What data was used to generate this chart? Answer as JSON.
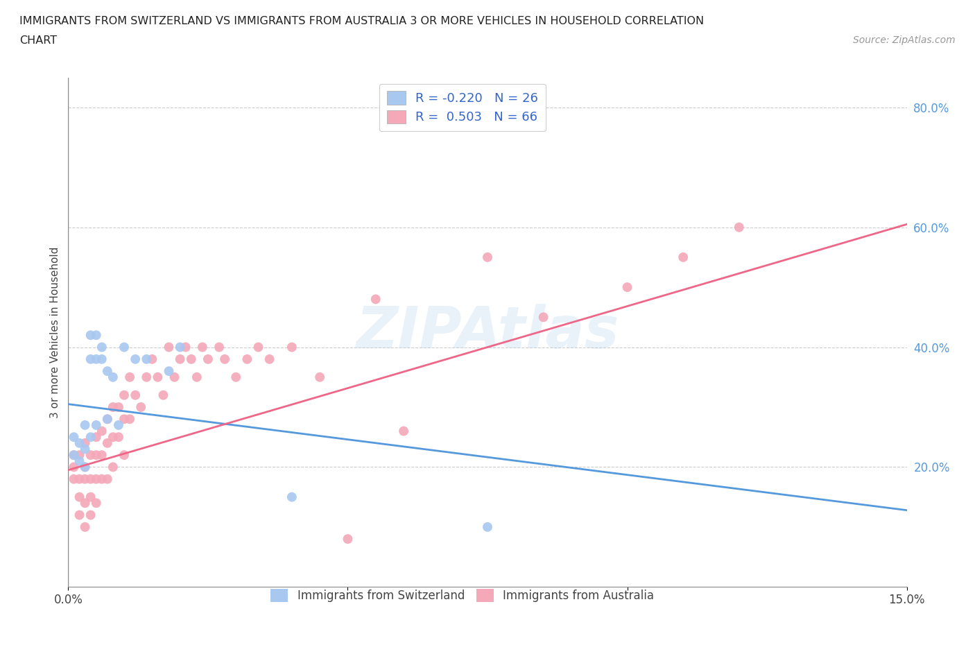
{
  "title_line1": "IMMIGRANTS FROM SWITZERLAND VS IMMIGRANTS FROM AUSTRALIA 3 OR MORE VEHICLES IN HOUSEHOLD CORRELATION",
  "title_line2": "CHART",
  "source": "Source: ZipAtlas.com",
  "ylabel": "3 or more Vehicles in Household",
  "xmin": 0.0,
  "xmax": 0.15,
  "ymin": 0.0,
  "ymax": 0.85,
  "yticks": [
    0.2,
    0.4,
    0.6,
    0.8
  ],
  "ytick_labels": [
    "20.0%",
    "40.0%",
    "60.0%",
    "80.0%"
  ],
  "xticks": [
    0.0,
    0.05,
    0.1,
    0.15
  ],
  "xtick_labels": [
    "0.0%",
    "",
    "",
    "15.0%"
  ],
  "legend_r1": "R = -0.220   N = 26",
  "legend_r2": "R =  0.503   N = 66",
  "color_swiss": "#a8c8f0",
  "color_australia": "#f4a8b8",
  "line_color_swiss": "#5599dd",
  "line_color_australia": "#ee6688",
  "swiss_line_x0": 0.0,
  "swiss_line_y0": 0.305,
  "swiss_line_x1": 0.15,
  "swiss_line_y1": 0.128,
  "aus_line_x0": 0.0,
  "aus_line_y0": 0.195,
  "aus_line_x1": 0.15,
  "aus_line_y1": 0.605,
  "swiss_scatter_x": [
    0.001,
    0.001,
    0.002,
    0.002,
    0.003,
    0.003,
    0.003,
    0.004,
    0.004,
    0.004,
    0.005,
    0.005,
    0.005,
    0.006,
    0.006,
    0.007,
    0.007,
    0.008,
    0.009,
    0.01,
    0.012,
    0.014,
    0.018,
    0.02,
    0.04,
    0.075
  ],
  "swiss_scatter_y": [
    0.22,
    0.25,
    0.21,
    0.24,
    0.23,
    0.27,
    0.2,
    0.38,
    0.42,
    0.25,
    0.38,
    0.42,
    0.27,
    0.38,
    0.4,
    0.36,
    0.28,
    0.35,
    0.27,
    0.4,
    0.38,
    0.38,
    0.36,
    0.4,
    0.15,
    0.1
  ],
  "aus_scatter_x": [
    0.001,
    0.001,
    0.001,
    0.002,
    0.002,
    0.002,
    0.002,
    0.003,
    0.003,
    0.003,
    0.003,
    0.003,
    0.004,
    0.004,
    0.004,
    0.004,
    0.005,
    0.005,
    0.005,
    0.005,
    0.006,
    0.006,
    0.006,
    0.007,
    0.007,
    0.007,
    0.008,
    0.008,
    0.008,
    0.009,
    0.009,
    0.01,
    0.01,
    0.01,
    0.011,
    0.011,
    0.012,
    0.013,
    0.014,
    0.015,
    0.016,
    0.017,
    0.018,
    0.019,
    0.02,
    0.021,
    0.022,
    0.023,
    0.024,
    0.025,
    0.027,
    0.028,
    0.03,
    0.032,
    0.034,
    0.036,
    0.04,
    0.045,
    0.05,
    0.055,
    0.06,
    0.075,
    0.085,
    0.1,
    0.11,
    0.12
  ],
  "aus_scatter_y": [
    0.22,
    0.2,
    0.18,
    0.22,
    0.18,
    0.15,
    0.12,
    0.24,
    0.2,
    0.18,
    0.14,
    0.1,
    0.22,
    0.18,
    0.15,
    0.12,
    0.25,
    0.22,
    0.18,
    0.14,
    0.26,
    0.22,
    0.18,
    0.28,
    0.24,
    0.18,
    0.3,
    0.25,
    0.2,
    0.3,
    0.25,
    0.32,
    0.28,
    0.22,
    0.35,
    0.28,
    0.32,
    0.3,
    0.35,
    0.38,
    0.35,
    0.32,
    0.4,
    0.35,
    0.38,
    0.4,
    0.38,
    0.35,
    0.4,
    0.38,
    0.4,
    0.38,
    0.35,
    0.38,
    0.4,
    0.38,
    0.4,
    0.35,
    0.08,
    0.48,
    0.26,
    0.55,
    0.45,
    0.5,
    0.55,
    0.6
  ]
}
